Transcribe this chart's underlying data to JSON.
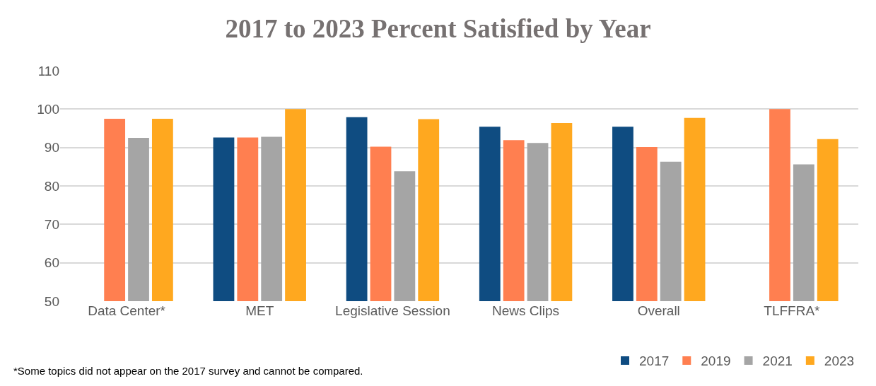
{
  "chart_data": {
    "type": "bar",
    "title": "2017 to 2023 Percent Satisfied by Year",
    "categories": [
      "Data Center*",
      "MET",
      "Legislative Session",
      "News Clips",
      "Overall",
      "TLFFRA*"
    ],
    "series": [
      {
        "name": "2017",
        "color": "#0f4c81",
        "values": [
          null,
          92.6,
          97.9,
          95.4,
          95.4,
          null
        ]
      },
      {
        "name": "2019",
        "color": "#ff7f50",
        "values": [
          97.5,
          92.6,
          90.2,
          91.9,
          90.1,
          100
        ]
      },
      {
        "name": "2021",
        "color": "#a5a5a5",
        "values": [
          92.5,
          92.8,
          83.8,
          91.2,
          86.3,
          85.6
        ]
      },
      {
        "name": "2023",
        "color": "#ffa81f",
        "values": [
          97.5,
          100,
          97.4,
          96.4,
          97.7,
          92.2
        ]
      }
    ],
    "ylim": [
      50,
      110
    ],
    "yticks": [
      50,
      60,
      70,
      80,
      90,
      100,
      110
    ],
    "grid": "y",
    "legend": "bottom right",
    "annotations": [
      "*Some topics did not appear on the 2017 survey and cannot be compared."
    ]
  }
}
